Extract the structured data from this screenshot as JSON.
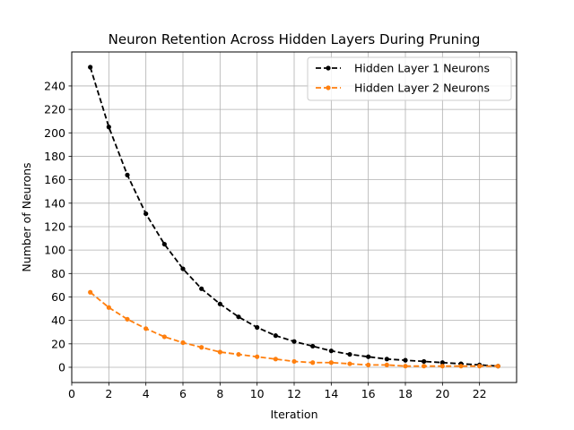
{
  "chart_data": {
    "type": "line",
    "title": "Neuron Retention Across Hidden Layers During Pruning",
    "xlabel": "Iteration",
    "ylabel": "Number of Neurons",
    "xlim": [
      0,
      24
    ],
    "ylim": [
      -13,
      269
    ],
    "xticks": [
      0,
      2,
      4,
      6,
      8,
      10,
      12,
      14,
      16,
      18,
      20,
      22
    ],
    "yticks": [
      0,
      20,
      40,
      60,
      80,
      100,
      120,
      140,
      160,
      180,
      200,
      220,
      240
    ],
    "grid": true,
    "legend_position": "top-right",
    "x": [
      1,
      2,
      3,
      4,
      5,
      6,
      7,
      8,
      9,
      10,
      11,
      12,
      13,
      14,
      15,
      16,
      17,
      18,
      19,
      20,
      21,
      22,
      23
    ],
    "series": [
      {
        "name": "Hidden Layer 1 Neurons",
        "color": "#000000",
        "line_style": "dashed",
        "marker": "circle",
        "values": [
          256,
          205,
          164,
          131,
          105,
          84,
          67,
          54,
          43,
          34,
          27,
          22,
          18,
          14,
          11,
          9,
          7,
          6,
          5,
          4,
          3,
          2,
          1
        ]
      },
      {
        "name": "Hidden Layer 2 Neurons",
        "color": "#ff7f0e",
        "line_style": "dashed",
        "marker": "circle",
        "values": [
          64,
          51,
          41,
          33,
          26,
          21,
          17,
          13,
          11,
          9,
          7,
          5,
          4,
          4,
          3,
          2,
          2,
          1,
          1,
          1,
          1,
          1,
          1
        ]
      }
    ]
  }
}
